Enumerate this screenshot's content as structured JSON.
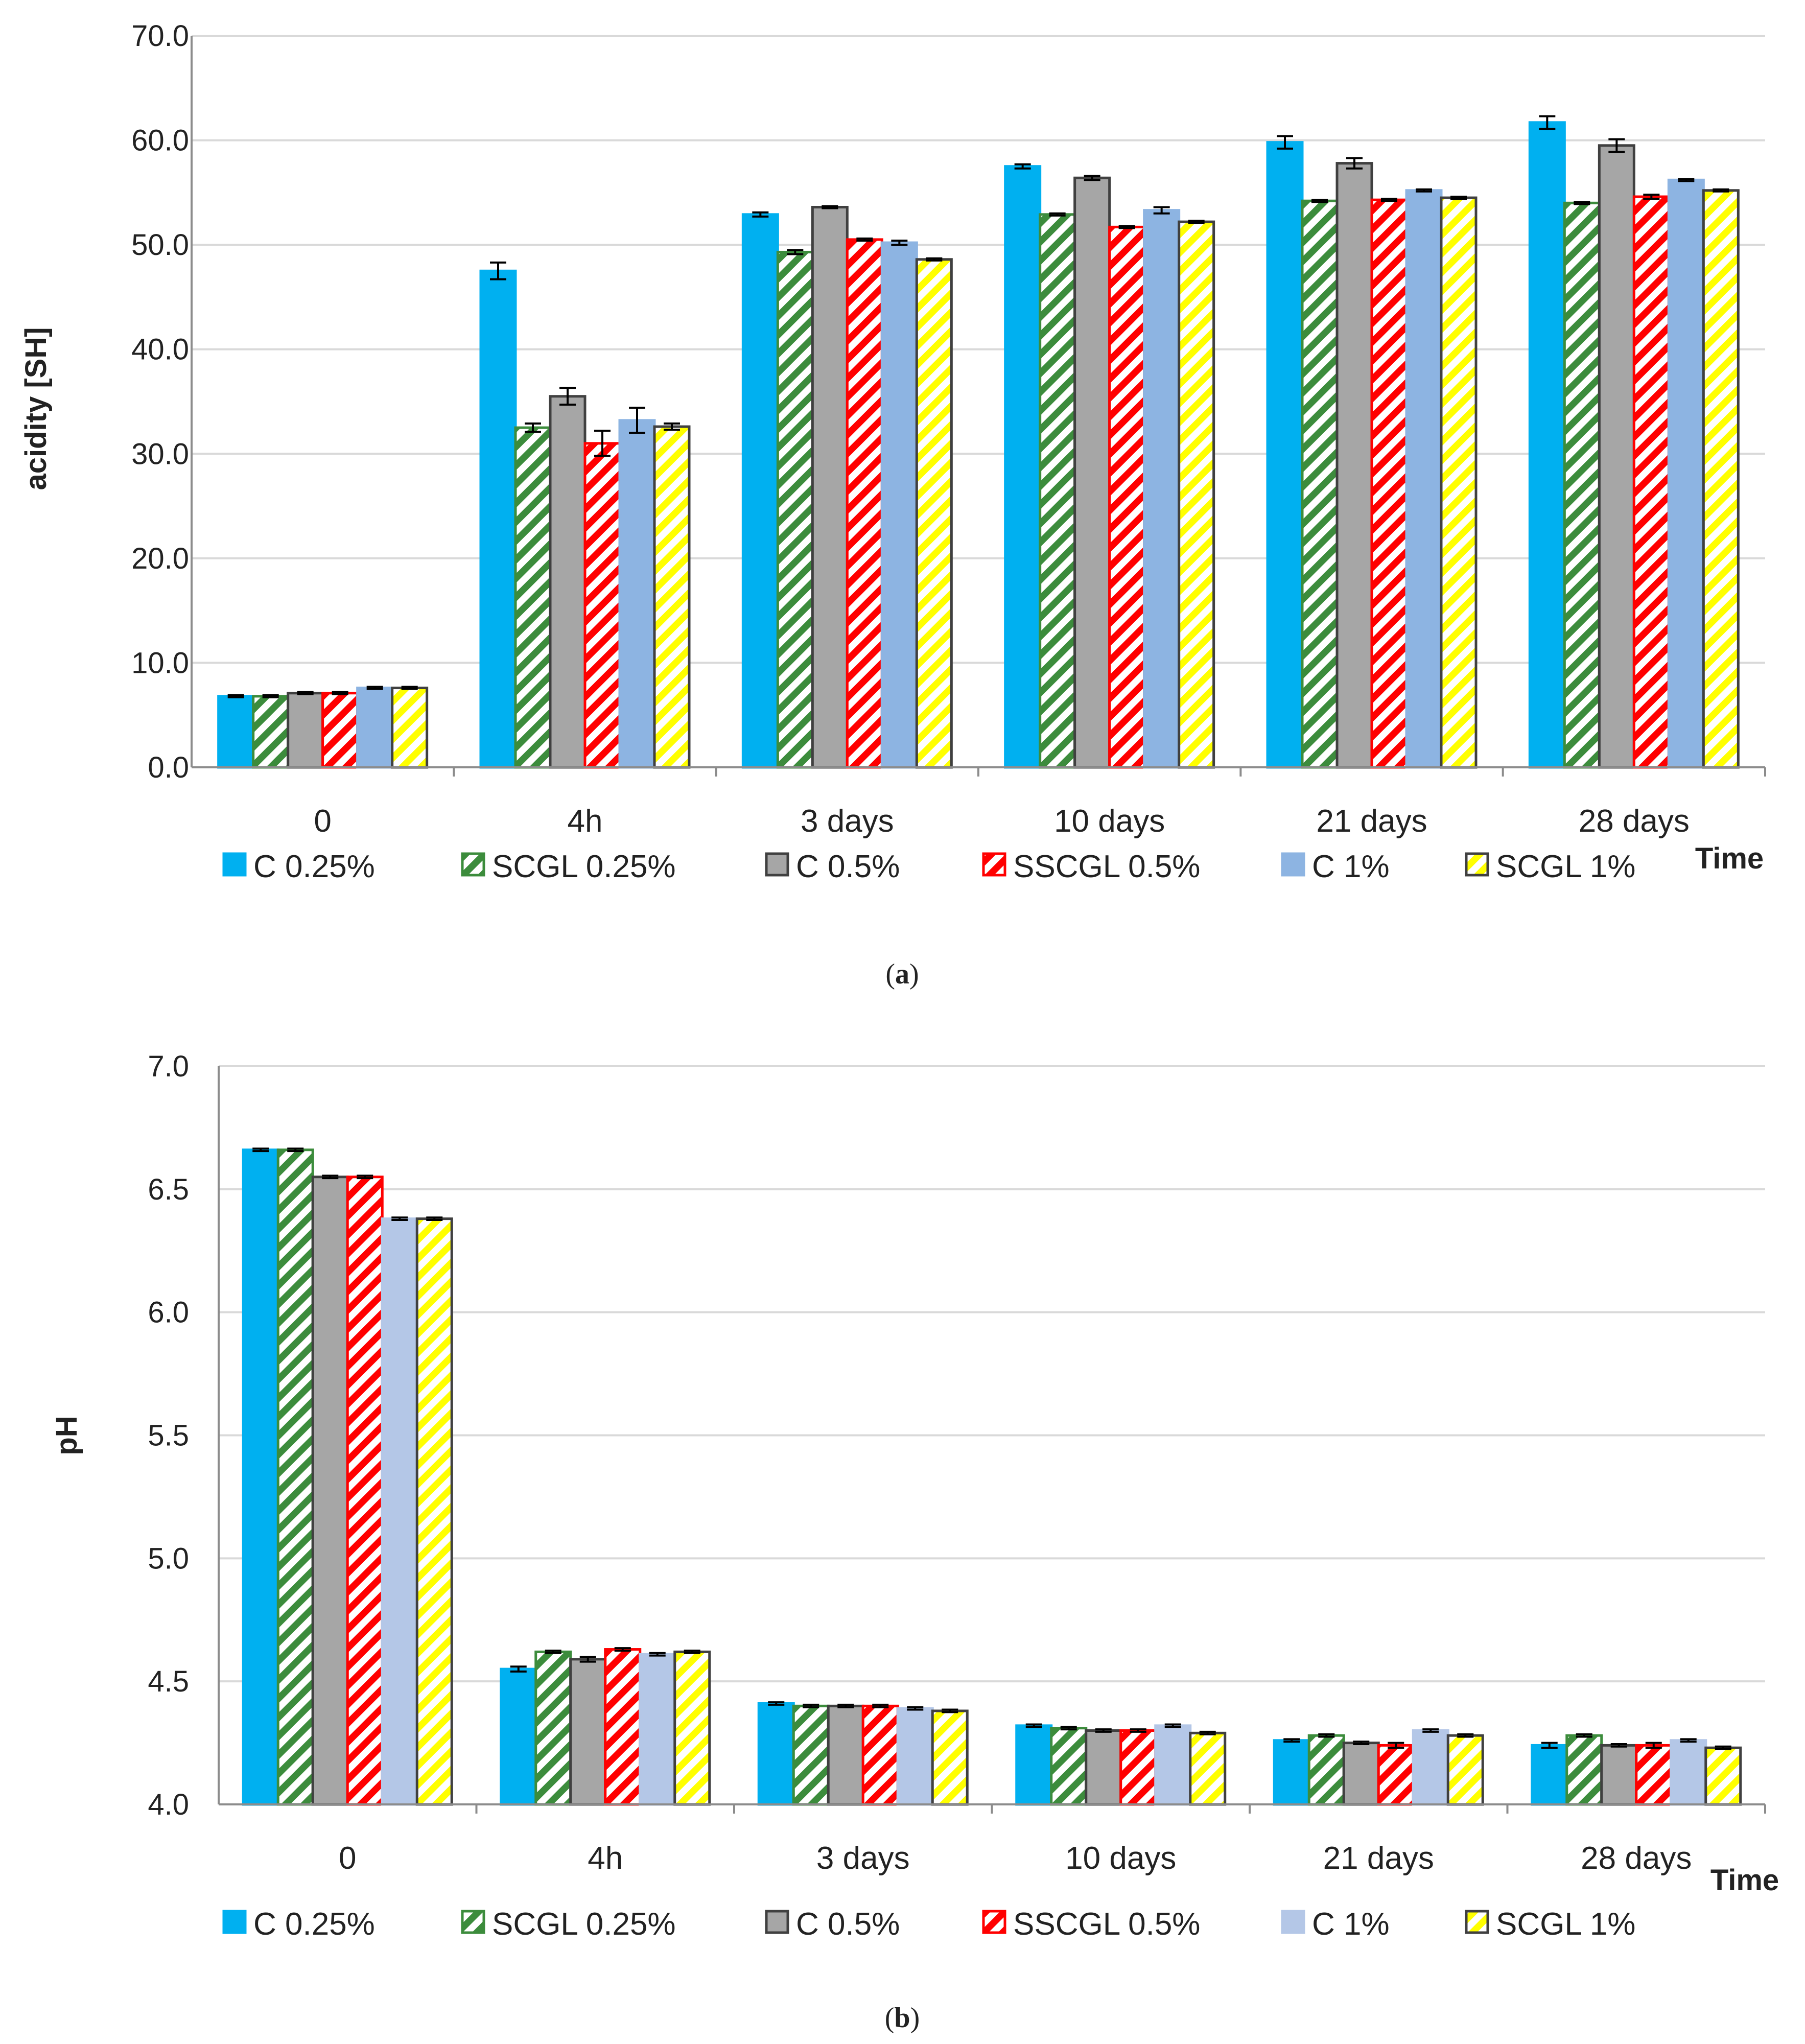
{
  "colors": {
    "c025": "#00b0f0",
    "scgl025": "#3c8c3c",
    "c05": "#a6a6a6",
    "sscgl05": "#ff0000",
    "c1_a": "#8db4e2",
    "c1_b": "#b4c7e7",
    "scgl1": "#ffff00",
    "grid": "#d9d9d9",
    "axis": "#8c8c8c"
  },
  "chart_data": [
    {
      "type": "bar",
      "caption_letter": "a",
      "ylabel": "acidity [SH]",
      "xlabel": "Time",
      "ylim": [
        0,
        70
      ],
      "yticks": [
        "0.0",
        "10.0",
        "20.0",
        "30.0",
        "40.0",
        "50.0",
        "60.0",
        "70.0"
      ],
      "categories": [
        "0",
        "4h",
        "3 days",
        "10 days",
        "21 days",
        "28 days"
      ],
      "grid": true,
      "legend_position": "bottom",
      "series": [
        {
          "name": "C 0.25%",
          "values": [
            6.8,
            47.5,
            52.9,
            57.5,
            59.8,
            61.7
          ],
          "errors": [
            0.1,
            0.8,
            0.2,
            0.2,
            0.6,
            0.6
          ]
        },
        {
          "name": "SCGL 0.25%",
          "values": [
            6.8,
            32.5,
            49.3,
            52.9,
            54.2,
            54.0
          ],
          "errors": [
            0.1,
            0.4,
            0.2,
            0.1,
            0.1,
            0.1
          ]
        },
        {
          "name": "C 0.5%",
          "values": [
            7.1,
            35.5,
            53.6,
            56.4,
            57.8,
            59.5
          ],
          "errors": [
            0.1,
            0.8,
            0.1,
            0.2,
            0.5,
            0.6
          ]
        },
        {
          "name": "SSCGL 0.5%",
          "values": [
            7.1,
            31.0,
            50.5,
            51.7,
            54.3,
            54.6
          ],
          "errors": [
            0.1,
            1.2,
            0.1,
            0.1,
            0.1,
            0.2
          ]
        },
        {
          "name": "C 1%",
          "values": [
            7.6,
            33.2,
            50.2,
            53.3,
            55.2,
            56.2
          ],
          "errors": [
            0.1,
            1.2,
            0.2,
            0.3,
            0.1,
            0.1
          ]
        },
        {
          "name": "SCGL 1%",
          "values": [
            7.6,
            32.6,
            48.6,
            52.2,
            54.5,
            55.2
          ],
          "errors": [
            0.1,
            0.3,
            0.1,
            0.1,
            0.1,
            0.1
          ]
        }
      ]
    },
    {
      "type": "bar",
      "caption_letter": "b",
      "ylabel": "pH",
      "xlabel": "Time",
      "ylim": [
        4.0,
        7.0
      ],
      "yticks": [
        "4.0",
        "4.5",
        "5.0",
        "5.5",
        "6.0",
        "6.5",
        "7.0"
      ],
      "categories": [
        "0",
        "4h",
        "3 days",
        "10 days",
        "21 days",
        "28 days"
      ],
      "grid": true,
      "legend_position": "bottom",
      "series": [
        {
          "name": "C 0.25%",
          "values": [
            6.66,
            4.55,
            4.41,
            4.32,
            4.26,
            4.24
          ],
          "errors": [
            0.005,
            0.01,
            0.005,
            0.005,
            0.005,
            0.01
          ]
        },
        {
          "name": "SCGL 0.25%",
          "values": [
            6.66,
            4.62,
            4.4,
            4.31,
            4.28,
            4.28
          ],
          "errors": [
            0.005,
            0.005,
            0.005,
            0.005,
            0.005,
            0.005
          ]
        },
        {
          "name": "C 0.5%",
          "values": [
            6.55,
            4.59,
            4.4,
            4.3,
            4.25,
            4.24
          ],
          "errors": [
            0.005,
            0.01,
            0.005,
            0.005,
            0.005,
            0.005
          ]
        },
        {
          "name": "SSCGL 0.5%",
          "values": [
            6.55,
            4.63,
            4.4,
            4.3,
            4.24,
            4.24
          ],
          "errors": [
            0.005,
            0.005,
            0.005,
            0.005,
            0.01,
            0.01
          ]
        },
        {
          "name": "C 1%",
          "values": [
            6.38,
            4.61,
            4.39,
            4.32,
            4.3,
            4.26
          ],
          "errors": [
            0.005,
            0.005,
            0.005,
            0.005,
            0.005,
            0.005
          ]
        },
        {
          "name": "SCGL 1%",
          "values": [
            6.38,
            4.62,
            4.38,
            4.29,
            4.28,
            4.23
          ],
          "errors": [
            0.005,
            0.005,
            0.005,
            0.005,
            0.005,
            0.005
          ]
        }
      ]
    }
  ]
}
